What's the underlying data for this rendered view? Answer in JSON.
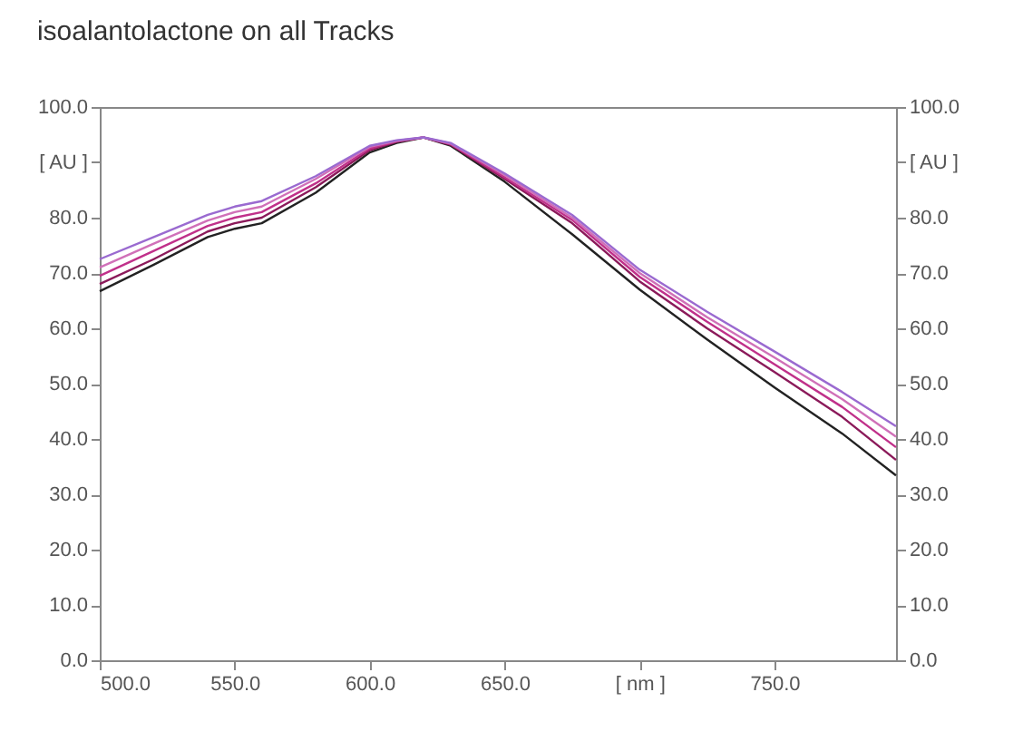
{
  "chart_data": {
    "type": "line",
    "title": "isoalantolactone on all Tracks",
    "x": [
      500,
      520,
      540,
      550,
      560,
      580,
      600,
      610,
      620,
      630,
      650,
      675,
      700,
      725,
      750,
      775,
      795
    ],
    "series": [
      {
        "color": "#222222",
        "values": [
          66.7,
          71.5,
          76.5,
          78,
          79,
          84.5,
          91.8,
          93.5,
          94.5,
          93,
          86.5,
          77,
          67,
          58,
          49.3,
          41,
          33.4
        ]
      },
      {
        "color": "#8b1a5a",
        "values": [
          68,
          72.5,
          77.5,
          79,
          80,
          85.5,
          92.2,
          93.7,
          94.5,
          93.2,
          87,
          79,
          68.5,
          60,
          52.1,
          44,
          36.2
        ]
      },
      {
        "color": "#c0308a",
        "values": [
          69.5,
          74,
          78.5,
          80,
          81,
          86.2,
          92.5,
          93.8,
          94.5,
          93.3,
          87.3,
          79.6,
          69.3,
          61.2,
          53.5,
          45.8,
          38.5
        ]
      },
      {
        "color": "#d070b8",
        "values": [
          71,
          75.3,
          79.5,
          81,
          82,
          87,
          92.8,
          93.9,
          94.5,
          93.4,
          87.7,
          80,
          70,
          62,
          54.7,
          47.2,
          40.4
        ]
      },
      {
        "color": "#9a6ad0",
        "axis": "y2",
        "values": [
          72.5,
          76.5,
          80.5,
          82,
          83,
          87.5,
          93,
          94,
          94.5,
          93.5,
          88,
          80.5,
          70.6,
          63,
          55.8,
          48.5,
          42.3
        ]
      }
    ],
    "xlim": [
      500,
      795
    ],
    "xticks": [
      {
        "value": 500,
        "label": "500.0"
      },
      {
        "value": 550,
        "label": "550.0"
      },
      {
        "value": 600,
        "label": "600.0"
      },
      {
        "value": 650,
        "label": "650.0"
      },
      {
        "value": 700,
        "label": "[ nm ]"
      },
      {
        "value": 750,
        "label": "750.0"
      }
    ],
    "ylim": [
      0,
      100
    ],
    "yticks": [
      {
        "value": 0,
        "label": "0.0"
      },
      {
        "value": 10,
        "label": "10.0"
      },
      {
        "value": 20,
        "label": "20.0"
      },
      {
        "value": 30,
        "label": "30.0"
      },
      {
        "value": 40,
        "label": "40.0"
      },
      {
        "value": 50,
        "label": "50.0"
      },
      {
        "value": 60,
        "label": "60.0"
      },
      {
        "value": 70,
        "label": "70.0"
      },
      {
        "value": 80,
        "label": "80.0"
      },
      {
        "value": 90,
        "label": "[ AU ]"
      },
      {
        "value": 100,
        "label": "100.0"
      }
    ],
    "y2lim": [
      0,
      100
    ],
    "y2ticks": [
      {
        "value": 0,
        "label": "0.0"
      },
      {
        "value": 10,
        "label": "10.0"
      },
      {
        "value": 20,
        "label": "20.0"
      },
      {
        "value": 30,
        "label": "30.0"
      },
      {
        "value": 40,
        "label": "40.0"
      },
      {
        "value": 50,
        "label": "50.0"
      },
      {
        "value": 60,
        "label": "60.0"
      },
      {
        "value": 70,
        "label": "70.0"
      },
      {
        "value": 80,
        "label": "80.0"
      },
      {
        "value": 90,
        "label": "[ AU ]"
      },
      {
        "value": 100,
        "label": "100.0"
      }
    ],
    "grid": false,
    "legend": false,
    "marker": "none",
    "line_style": "solid"
  }
}
